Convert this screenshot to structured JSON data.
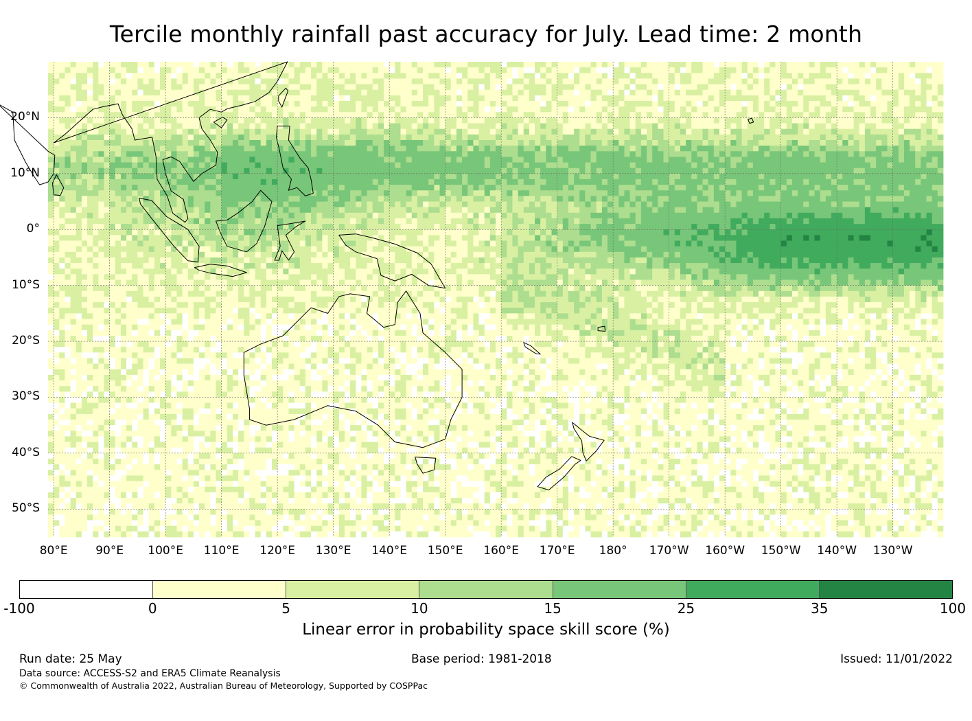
{
  "title": "Tercile monthly rainfall past accuracy for July. Lead time: 2 month",
  "map": {
    "lon_range": [
      79,
      239
    ],
    "lat_range": [
      -55,
      30
    ],
    "lat_labels": [
      {
        "lat": 20,
        "text": "20°N"
      },
      {
        "lat": 10,
        "text": "10°N"
      },
      {
        "lat": 0,
        "text": "0°"
      },
      {
        "lat": -10,
        "text": "10°S"
      },
      {
        "lat": -20,
        "text": "20°S"
      },
      {
        "lat": -30,
        "text": "30°S"
      },
      {
        "lat": -40,
        "text": "40°S"
      },
      {
        "lat": -50,
        "text": "50°S"
      }
    ],
    "lon_labels": [
      {
        "lon": 80,
        "text": "80°E"
      },
      {
        "lon": 90,
        "text": "90°E"
      },
      {
        "lon": 100,
        "text": "100°E"
      },
      {
        "lon": 110,
        "text": "110°E"
      },
      {
        "lon": 120,
        "text": "120°E"
      },
      {
        "lon": 130,
        "text": "130°E"
      },
      {
        "lon": 140,
        "text": "140°E"
      },
      {
        "lon": 150,
        "text": "150°E"
      },
      {
        "lon": 160,
        "text": "160°E"
      },
      {
        "lon": 170,
        "text": "170°E"
      },
      {
        "lon": 180,
        "text": "180°"
      },
      {
        "lon": 190,
        "text": "170°W"
      },
      {
        "lon": 200,
        "text": "160°W"
      },
      {
        "lon": 210,
        "text": "150°W"
      },
      {
        "lon": 220,
        "text": "140°W"
      },
      {
        "lon": 230,
        "text": "130°W"
      }
    ],
    "gridlines": true
  },
  "colorbar": {
    "label": "Linear error in probability space skill score (%)",
    "ticks": [
      "-100",
      "0",
      "5",
      "10",
      "15",
      "25",
      "35",
      "100"
    ],
    "colors": [
      "#ffffff",
      "#ffffcc",
      "#d9f0a3",
      "#addd8e",
      "#78c679",
      "#41ab5d",
      "#238443"
    ]
  },
  "footer": {
    "run_date": "Run date: 25 May",
    "base_period": "Base period: 1981-2018",
    "issued": "Issued: 11/01/2022",
    "data_source": "Data source: ACCESS-S2 and ERA5 Climate Reanalysis",
    "copyright": "© Commonwealth of Australia 2022, Australian Bureau of Meteorology, Supported by COSPPac"
  }
}
